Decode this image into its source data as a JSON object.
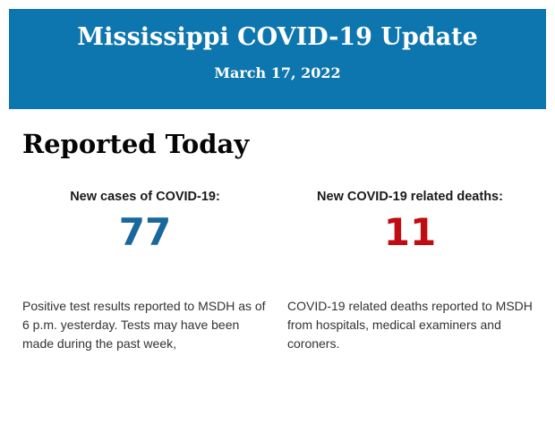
{
  "header": {
    "title": "Mississippi COVID-19 Update",
    "date": "March 17, 2022"
  },
  "section": {
    "heading": "Reported Today"
  },
  "stats": [
    {
      "label": "New cases of COVID-19:",
      "value": "77",
      "description": "Positive test results reported to MSDH as of 6 p.m. yesterday. Tests may have been made during the past week,"
    },
    {
      "label": "New COVID-19 related deaths:",
      "value": "11",
      "description": "COVID-19 related deaths reported to MSDH from hospitals, medical examiners and coroners."
    }
  ],
  "colors": {
    "header_background": "#0e76ae",
    "cases_value": "#19679c",
    "deaths_value": "#c00d12",
    "body_text": "#333333"
  }
}
